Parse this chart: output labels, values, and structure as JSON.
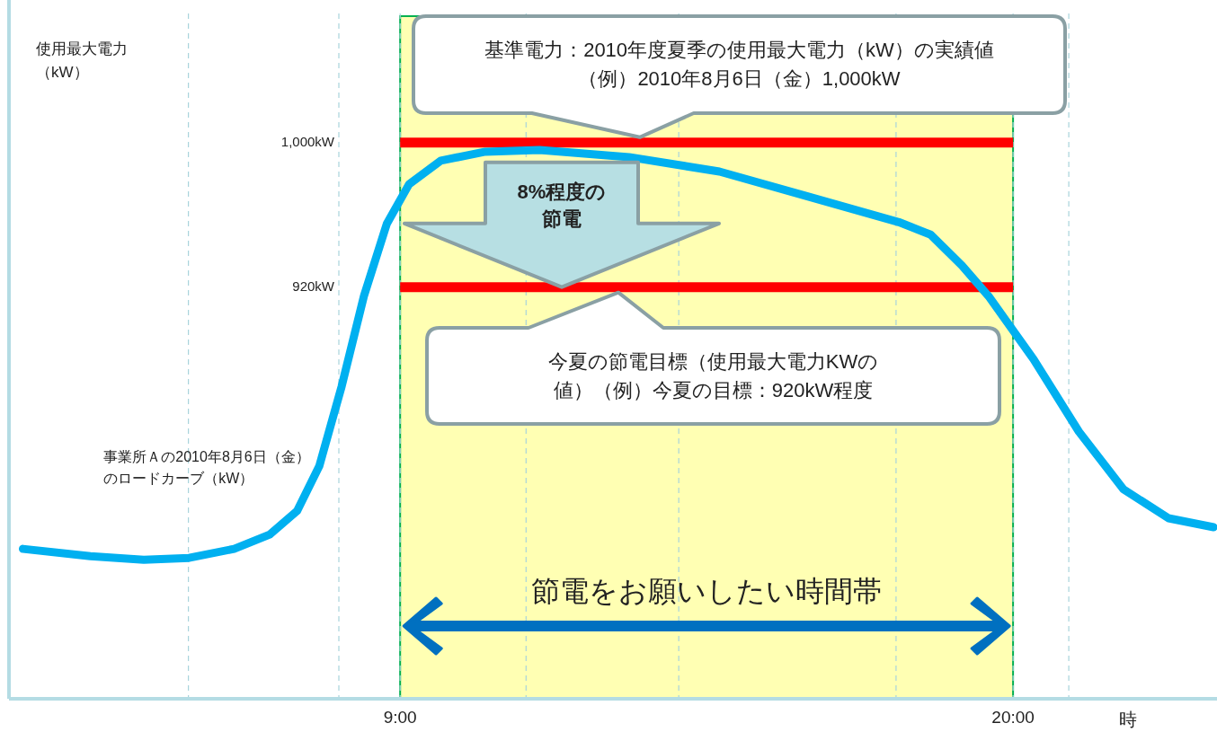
{
  "chart_data": {
    "type": "line",
    "xlabel": "時",
    "ylabel": "使用最大電力（kW）",
    "x": [
      2.23,
      3.44,
      4.4,
      5.21,
      6.02,
      6.66,
      7.15,
      7.55,
      7.95,
      8.35,
      8.76,
      9.16,
      9.73,
      10.53,
      11.5,
      13.11,
      14.73,
      16.34,
      17.95,
      18.52,
      19.08,
      19.56,
      20.37,
      21.18,
      21.98,
      22.79,
      23.6
    ],
    "series": [
      {
        "name": "事業所Ａの2010年8月6日（金）のロードカーブ（kW）",
        "color": "#00b0f0",
        "values": [
          775,
          771,
          769,
          770,
          775,
          783,
          796,
          821,
          865,
          915,
          955,
          977,
          990,
          995,
          996,
          992,
          984,
          970,
          956,
          949,
          932,
          915,
          880,
          840,
          808,
          792,
          787
        ]
      }
    ],
    "xlim": [
      1.98,
      23.66
    ],
    "ylim": [
      692,
      1079
    ],
    "xticks": [
      {
        "value": 5.2,
        "label": null
      },
      {
        "value": 7.9,
        "label": null
      },
      {
        "value": 9,
        "label": "9:00"
      },
      {
        "value": 11.26,
        "label": null
      },
      {
        "value": 14,
        "label": null
      },
      {
        "value": 17.9,
        "label": null
      },
      {
        "value": 20,
        "label": "20:00"
      },
      {
        "value": 21,
        "label": null
      }
    ],
    "yticks": [
      {
        "value": 920,
        "label": "920kW"
      },
      {
        "value": 1000,
        "label": "1,000kW"
      }
    ],
    "grid": "x",
    "marker": "none",
    "line_style": "solid",
    "ref_lines": [
      {
        "axis": "y",
        "value": 1000,
        "color": "#ff0000"
      },
      {
        "axis": "y",
        "value": 920,
        "color": "#ff0000"
      }
    ],
    "bands": [
      {
        "axis": "x",
        "from": 9,
        "to": 20,
        "label": "節電をお願いしたい時間帯",
        "color": "#ffffb3"
      }
    ],
    "annotations": [
      {
        "text": "基準電力：2010年度夏季の使用最大電力（kW）の実績値（例）2010年8月6日（金）1,000kW",
        "x": 13.3,
        "y": 1000
      },
      "今夏の節電目標（使用最大電力KWの値）（例）今夏の目標：920kW程度",
      "8%程度の節電"
    ]
  }
}
